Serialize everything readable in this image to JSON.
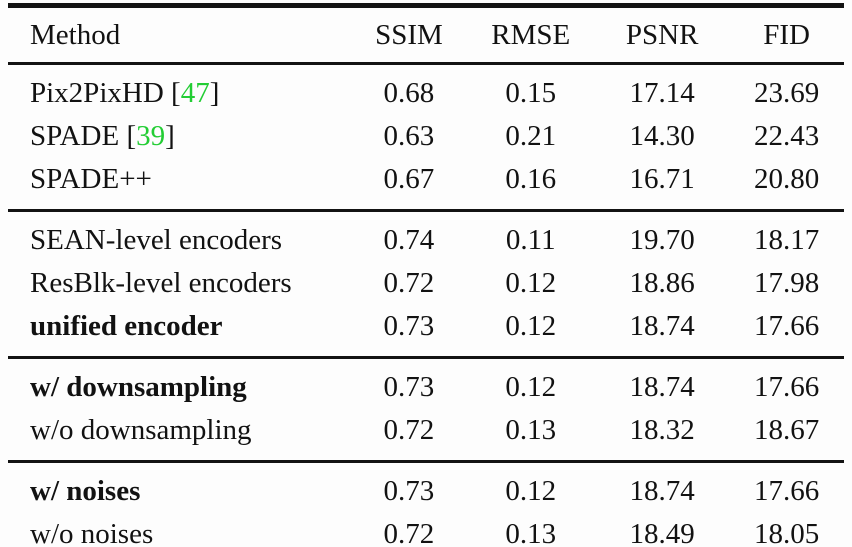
{
  "colors": {
    "citation_green": "#23cd34",
    "rule_black": "#131313",
    "text": "#121212",
    "background": "#fdfdfd"
  },
  "table": {
    "cite_open": "[",
    "cite_close": "]",
    "columns": [
      "Method",
      "SSIM",
      "RMSE",
      "PSNR",
      "FID"
    ],
    "groups": [
      {
        "rows": [
          {
            "method": "Pix2PixHD",
            "cite": "47",
            "bold": false,
            "values": [
              "0.68",
              "0.15",
              "17.14",
              "23.69"
            ]
          },
          {
            "method": "SPADE",
            "cite": "39",
            "bold": false,
            "values": [
              "0.63",
              "0.21",
              "14.30",
              "22.43"
            ]
          },
          {
            "method": "SPADE++",
            "cite": null,
            "bold": false,
            "values": [
              "0.67",
              "0.16",
              "16.71",
              "20.80"
            ]
          }
        ]
      },
      {
        "rows": [
          {
            "method": "SEAN-level encoders",
            "cite": null,
            "bold": false,
            "values": [
              "0.74",
              "0.11",
              "19.70",
              "18.17"
            ]
          },
          {
            "method": "ResBlk-level encoders",
            "cite": null,
            "bold": false,
            "values": [
              "0.72",
              "0.12",
              "18.86",
              "17.98"
            ]
          },
          {
            "method": "unified encoder",
            "cite": null,
            "bold": true,
            "values": [
              "0.73",
              "0.12",
              "18.74",
              "17.66"
            ]
          }
        ]
      },
      {
        "rows": [
          {
            "method": "w/ downsampling",
            "cite": null,
            "bold": true,
            "values": [
              "0.73",
              "0.12",
              "18.74",
              "17.66"
            ]
          },
          {
            "method": "w/o downsampling",
            "cite": null,
            "bold": false,
            "values": [
              "0.72",
              "0.13",
              "18.32",
              "18.67"
            ]
          }
        ]
      },
      {
        "rows": [
          {
            "method": "w/ noises",
            "cite": null,
            "bold": true,
            "values": [
              "0.73",
              "0.12",
              "18.74",
              "17.66"
            ]
          },
          {
            "method": "w/o noises",
            "cite": null,
            "bold": false,
            "values": [
              "0.72",
              "0.13",
              "18.49",
              "18.05"
            ]
          }
        ]
      }
    ]
  }
}
